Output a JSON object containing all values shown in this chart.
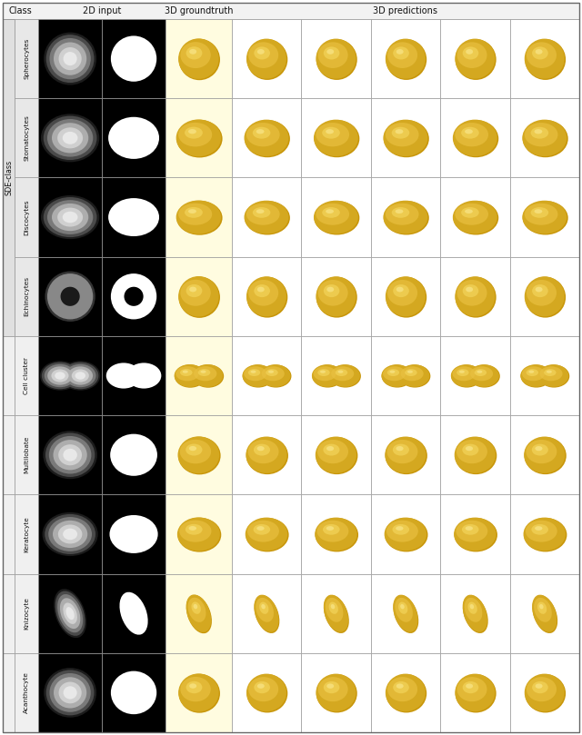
{
  "title_row": [
    "Class",
    "2D input",
    "3D groundtruth",
    "3D predictions"
  ],
  "row_labels": [
    "Spherocytes",
    "Stomatocytes",
    "Discocytes",
    "Echinocytes",
    "Cell cluster",
    "Multilobate",
    "Keratocyte",
    "Knizocyte",
    "Acanthocyte"
  ],
  "sde_class_label": "SDE-class",
  "sde_class_rows": [
    0,
    1,
    2,
    3
  ],
  "n_rows": 9,
  "header_bg": "#f2f2f2",
  "sde_bg": "#e0e0e0",
  "nonsde_bg": "#f0f0f0",
  "gt_bg": "#fffce0",
  "black_bg": "#000000",
  "white_bg": "#ffffff",
  "border_color": "#999999",
  "text_color": "#111111",
  "header_fontsize": 7.0,
  "label_fontsize": 5.5,
  "yellow_dark": "#c8960a",
  "yellow_mid": "#d4a820",
  "yellow_light": "#f0cc50",
  "yellow_bright": "#f8e070",
  "fig_width": 6.4,
  "fig_height": 8.09,
  "n_pred_cols": 5
}
